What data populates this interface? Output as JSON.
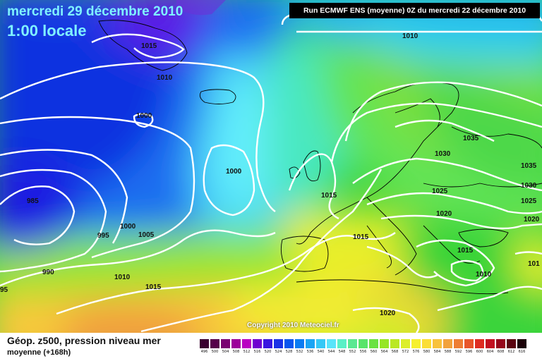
{
  "header": {
    "date": "mercredi 29 décembre 2010",
    "time": "1:00 locale",
    "run": "Run ECMWF ENS (moyenne) 0Z du mercredi 22 décembre 2010"
  },
  "copyright": "Copyright 2010 Meteociel.fr",
  "footer": {
    "title": "Géop. z500, pression niveau mer",
    "subtitle": "moyenne  (+168h)"
  },
  "isobar_labels": [
    "1015",
    "1010",
    "1010",
    "1000",
    "1000",
    "985",
    "995",
    "1000",
    "1005",
    "990",
    "1010",
    "1015",
    "95",
    "1015",
    "1015",
    "1020",
    "1030",
    "1035",
    "1035",
    "1030",
    "1025",
    "1025",
    "1020",
    "1020",
    "1015",
    "1010",
    "101",
    "1010"
  ],
  "scale": {
    "labels": [
      "496",
      "500",
      "504",
      "508",
      "512",
      "516",
      "520",
      "524",
      "528",
      "532",
      "536",
      "540",
      "544",
      "548",
      "552",
      "556",
      "560",
      "564",
      "568",
      "572",
      "576",
      "580",
      "584",
      "588",
      "592",
      "596",
      "600",
      "604",
      "608",
      "612",
      "616"
    ],
    "colors": [
      "#3a0030",
      "#56004a",
      "#7a0072",
      "#9c009a",
      "#ba00c2",
      "#7000d0",
      "#3a16e0",
      "#1c32e6",
      "#0a56ee",
      "#0a7cf2",
      "#1aa4f4",
      "#36c8f6",
      "#5ae4fa",
      "#5af0c6",
      "#5ae892",
      "#58e46a",
      "#6ae242",
      "#96e626",
      "#bae824",
      "#dcee2c",
      "#f6f030",
      "#fbde36",
      "#f8c23c",
      "#f2a23c",
      "#ee7e34",
      "#e8552a",
      "#de2c22",
      "#c21020",
      "#96061a",
      "#5a0410",
      "#1a0006"
    ]
  }
}
